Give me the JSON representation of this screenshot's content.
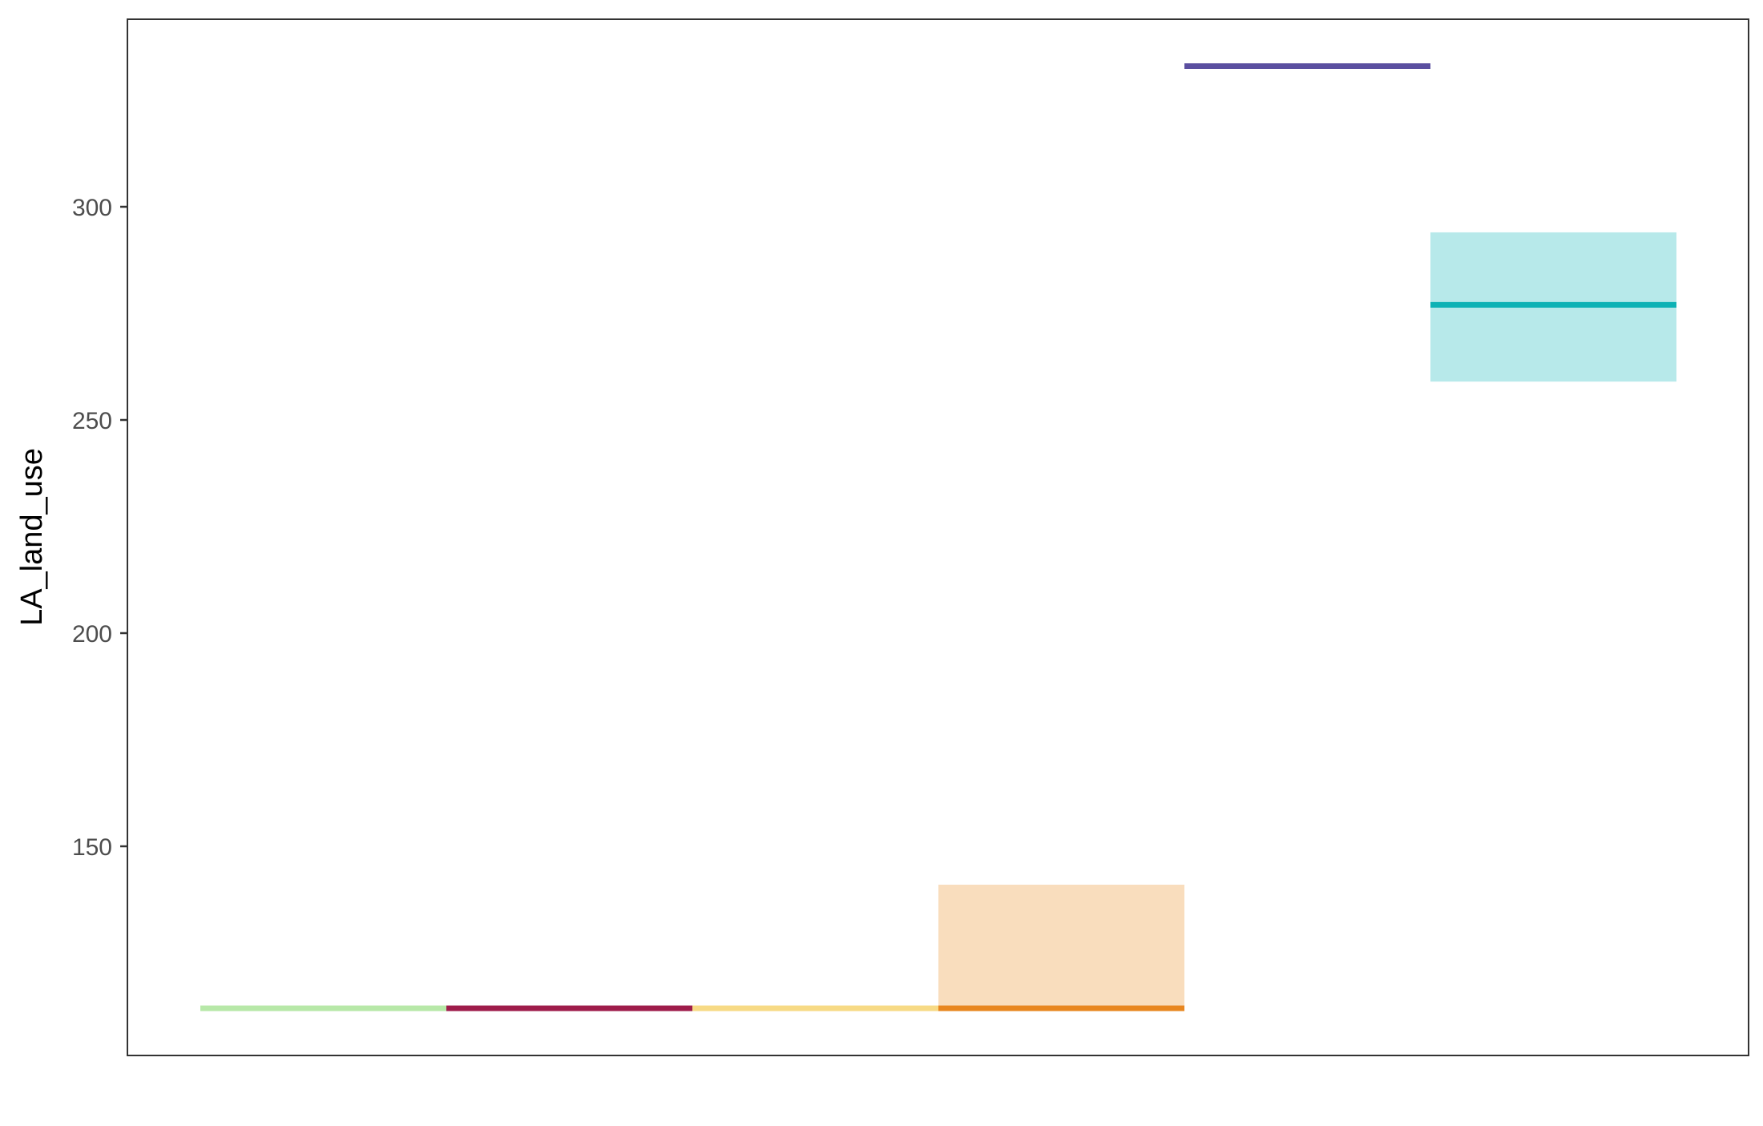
{
  "chart_data": {
    "type": "crossbar",
    "title": "",
    "xlabel": "",
    "ylabel": "LA_land_use",
    "ylim": [
      102,
      345
    ],
    "yticks": [
      150,
      200,
      250,
      300
    ],
    "ytick_labels": [
      "150",
      "200",
      "250",
      "300"
    ],
    "grid": false,
    "legend": "none",
    "series": [
      {
        "median": 112,
        "lower": 112,
        "upper": 112,
        "line_color": "#b7e8a8",
        "fill_color": "#b7e8a8"
      },
      {
        "median": 112,
        "lower": 112,
        "upper": 112,
        "line_color": "#9e1c4a",
        "fill_color": "#9e1c4a"
      },
      {
        "median": 112,
        "lower": 112,
        "upper": 112,
        "line_color": "#f7da85",
        "fill_color": "#f7da85"
      },
      {
        "median": 112,
        "lower": 112,
        "upper": 141,
        "line_color": "#e8861f",
        "fill_color": "#f9ddbd"
      },
      {
        "median": 333,
        "lower": 333,
        "upper": 333,
        "line_color": "#5b4fa0",
        "fill_color": "#5b4fa0"
      },
      {
        "median": 277,
        "lower": 259,
        "upper": 294,
        "line_color": "#0db2b5",
        "fill_color": "#b7e9ea"
      }
    ]
  }
}
